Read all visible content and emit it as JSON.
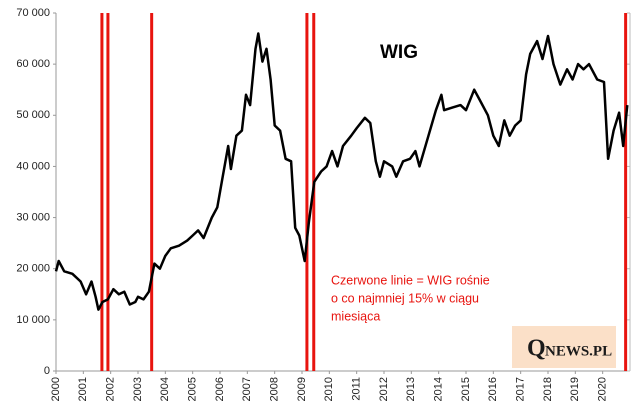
{
  "chart_data": {
    "type": "line",
    "title": "WIG",
    "annotation": [
      "Czerwone linie = WIG rośnie",
      "o co najmniej 15% w ciągu",
      "miesiąca"
    ],
    "logo": {
      "initial": "Q",
      "rest": "NEWS.PL"
    },
    "xlim": [
      2000,
      2021
    ],
    "xticks": [
      2000,
      2001,
      2002,
      2003,
      2004,
      2005,
      2006,
      2007,
      2008,
      2009,
      2010,
      2011,
      2012,
      2013,
      2014,
      2015,
      2016,
      2017,
      2018,
      2019,
      2020
    ],
    "ylim": [
      0,
      70000
    ],
    "yticks": [
      0,
      {
        "value": 10000,
        "label": "10 000"
      },
      {
        "value": 20000,
        "label": "20 000"
      },
      {
        "value": 30000,
        "label": "30 000"
      },
      {
        "value": 40000,
        "label": "40 000"
      },
      {
        "value": 50000,
        "label": "50 000"
      },
      {
        "value": 60000,
        "label": "60 000"
      },
      {
        "value": 70000,
        "label": "70 000"
      }
    ],
    "grid": false,
    "red_lines": {
      "color": "#e8140f",
      "x": [
        2001.68,
        2001.9,
        2003.5,
        2009.18,
        2009.43,
        2020.84
      ]
    },
    "x": [
      2000.0,
      2000.1,
      2000.3,
      2000.6,
      2000.9,
      2001.1,
      2001.3,
      2001.45,
      2001.55,
      2001.7,
      2001.9,
      2002.1,
      2002.3,
      2002.5,
      2002.7,
      2002.9,
      2003.0,
      2003.2,
      2003.4,
      2003.6,
      2003.8,
      2004.0,
      2004.2,
      2004.5,
      2004.8,
      2005.0,
      2005.2,
      2005.4,
      2005.7,
      2005.9,
      2006.1,
      2006.3,
      2006.4,
      2006.6,
      2006.8,
      2006.95,
      2007.1,
      2007.3,
      2007.4,
      2007.55,
      2007.7,
      2007.85,
      2008.0,
      2008.2,
      2008.4,
      2008.6,
      2008.75,
      2008.9,
      2009.1,
      2009.25,
      2009.45,
      2009.7,
      2009.9,
      2010.1,
      2010.3,
      2010.5,
      2010.8,
      2011.0,
      2011.3,
      2011.5,
      2011.7,
      2011.85,
      2012.0,
      2012.3,
      2012.45,
      2012.7,
      2012.95,
      2013.15,
      2013.3,
      2013.6,
      2013.9,
      2014.1,
      2014.2,
      2014.5,
      2014.8,
      2015.0,
      2015.3,
      2015.5,
      2015.8,
      2016.0,
      2016.2,
      2016.4,
      2016.6,
      2016.8,
      2017.0,
      2017.2,
      2017.35,
      2017.6,
      2017.8,
      2018.0,
      2018.2,
      2018.45,
      2018.7,
      2018.9,
      2019.1,
      2019.3,
      2019.5,
      2019.8,
      2020.05,
      2020.2,
      2020.4,
      2020.6,
      2020.75,
      2020.9
    ],
    "series": [
      {
        "name": "WIG",
        "color": "#000000",
        "values": [
          19500,
          21500,
          19500,
          19000,
          17500,
          15000,
          17500,
          14500,
          12000,
          13500,
          14000,
          16000,
          15000,
          15500,
          13000,
          13500,
          14500,
          14000,
          15500,
          21000,
          20000,
          22500,
          24000,
          24500,
          25500,
          26500,
          27500,
          26000,
          30000,
          32000,
          38000,
          44000,
          39500,
          46000,
          47000,
          54000,
          52000,
          63000,
          66000,
          60500,
          63000,
          57000,
          48000,
          47000,
          41500,
          41000,
          28000,
          26500,
          21500,
          29000,
          37000,
          39000,
          40000,
          43000,
          40000,
          44000,
          46000,
          47500,
          49500,
          48500,
          41000,
          38000,
          41000,
          40000,
          38000,
          41000,
          41500,
          43000,
          40000,
          45500,
          51000,
          54000,
          51000,
          51500,
          52000,
          51000,
          55000,
          53000,
          50000,
          46000,
          44000,
          49000,
          46000,
          48000,
          49000,
          58000,
          62000,
          64500,
          61000,
          65500,
          60000,
          56000,
          59000,
          57000,
          60000,
          59000,
          60000,
          57000,
          56500,
          41500,
          47000,
          50500,
          44000,
          52000
        ]
      }
    ]
  }
}
